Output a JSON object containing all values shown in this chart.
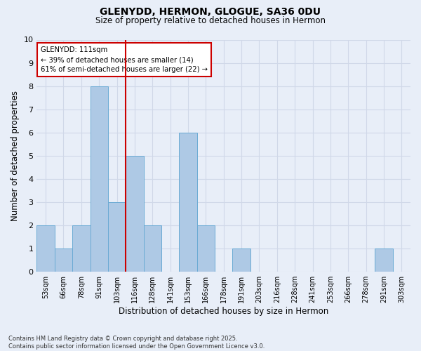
{
  "title_line1": "GLENYDD, HERMON, GLOGUE, SA36 0DU",
  "title_line2": "Size of property relative to detached houses in Hermon",
  "xlabel": "Distribution of detached houses by size in Hermon",
  "ylabel": "Number of detached properties",
  "categories": [
    "53sqm",
    "66sqm",
    "78sqm",
    "91sqm",
    "103sqm",
    "116sqm",
    "128sqm",
    "141sqm",
    "153sqm",
    "166sqm",
    "178sqm",
    "191sqm",
    "203sqm",
    "216sqm",
    "228sqm",
    "241sqm",
    "253sqm",
    "266sqm",
    "278sqm",
    "291sqm",
    "303sqm"
  ],
  "values": [
    2,
    1,
    2,
    8,
    3,
    5,
    2,
    0,
    6,
    2,
    0,
    1,
    0,
    0,
    0,
    0,
    0,
    0,
    0,
    1,
    0
  ],
  "bar_color": "#aec9e5",
  "bar_edge_color": "#6aaad4",
  "red_line_x": 4.5,
  "annotation_text": "GLENYDD: 111sqm\n← 39% of detached houses are smaller (14)\n61% of semi-detached houses are larger (22) →",
  "annotation_box_color": "white",
  "annotation_box_edge_color": "#cc0000",
  "red_line_color": "#cc0000",
  "ylim": [
    0,
    10
  ],
  "yticks": [
    0,
    1,
    2,
    3,
    4,
    5,
    6,
    7,
    8,
    9,
    10
  ],
  "grid_color": "#d0d8e8",
  "background_color": "#e8eef8",
  "footnote": "Contains HM Land Registry data © Crown copyright and database right 2025.\nContains public sector information licensed under the Open Government Licence v3.0."
}
